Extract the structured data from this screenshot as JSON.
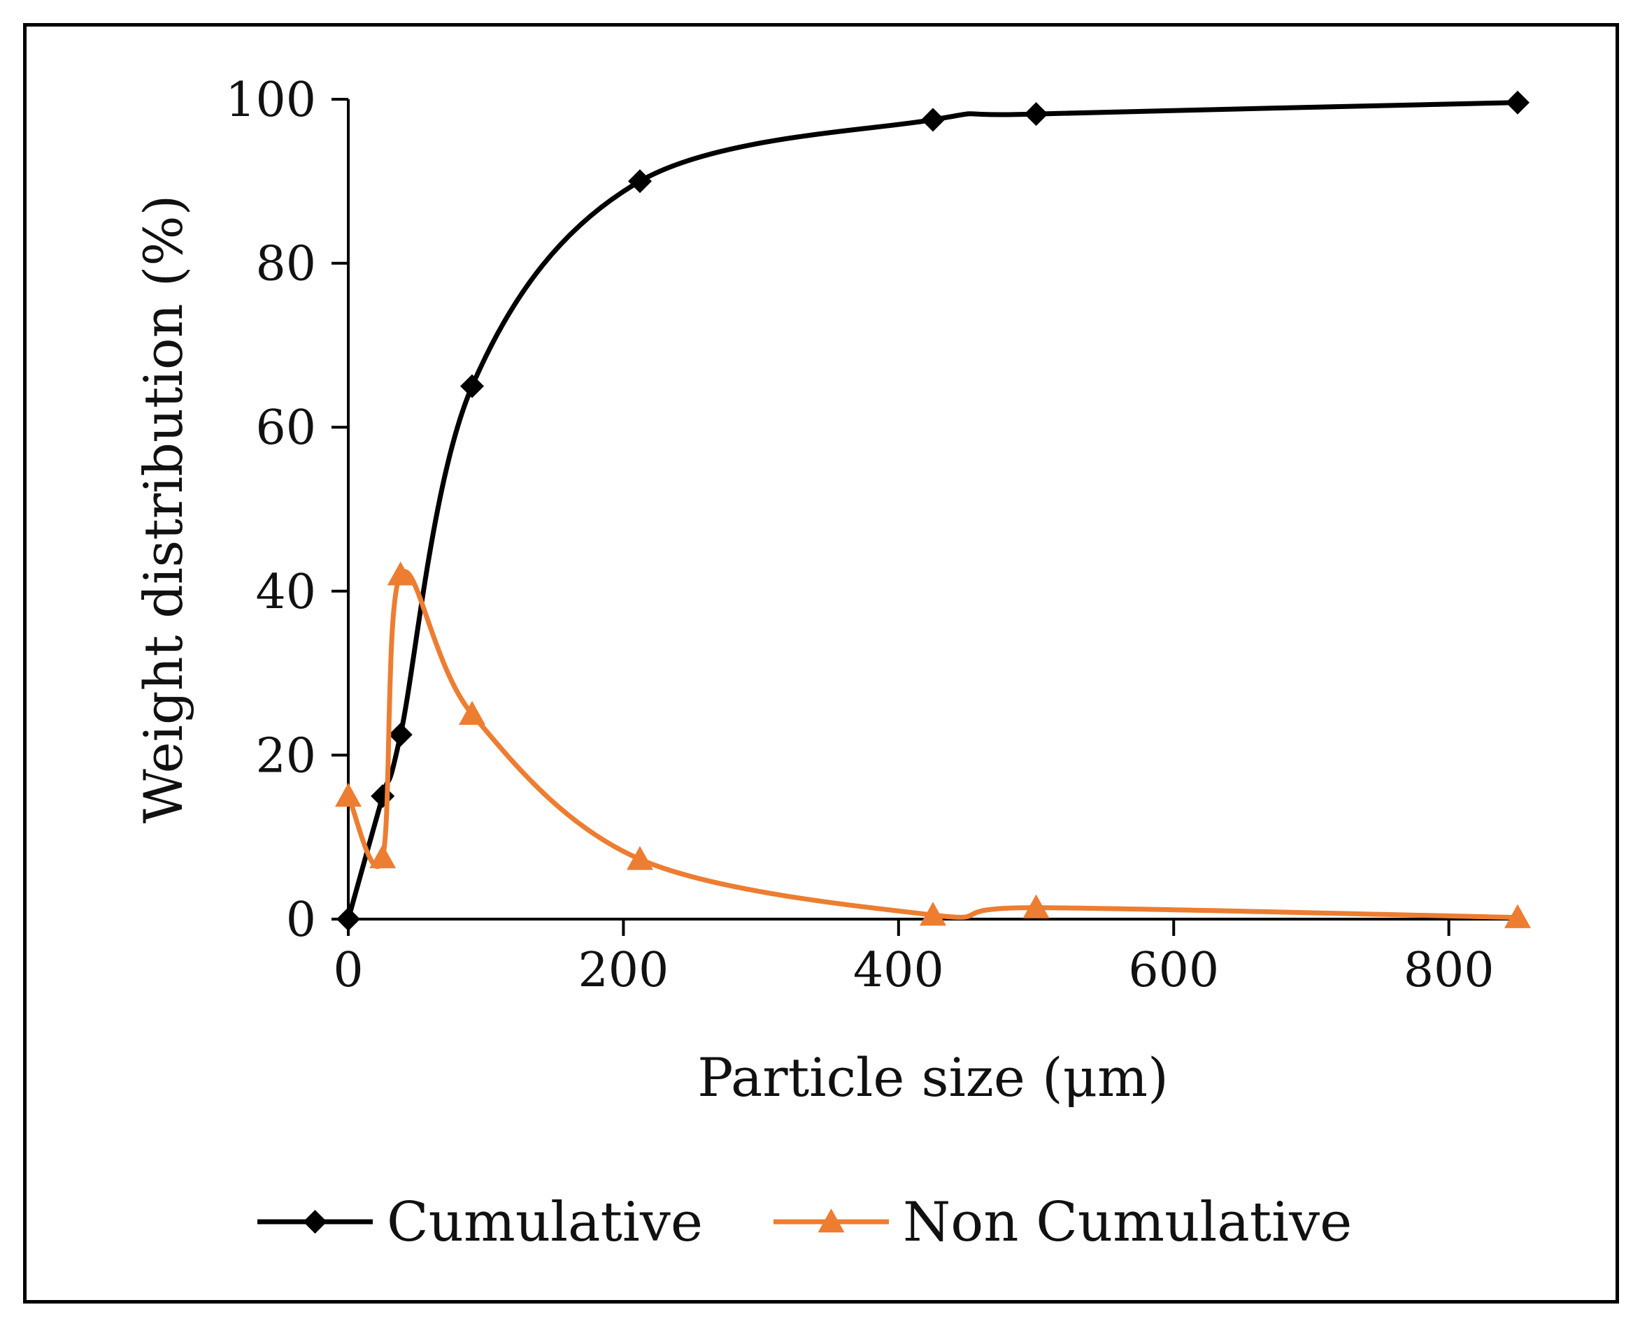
{
  "chart_data": {
    "type": "line",
    "title": "",
    "xlabel": "Particle size (μm)",
    "ylabel": "Weight distribution (%)",
    "xlim": [
      0,
      850
    ],
    "ylim": [
      0,
      100
    ],
    "x_ticks": [
      0,
      200,
      400,
      600,
      800
    ],
    "y_ticks": [
      0,
      20,
      40,
      60,
      80,
      100
    ],
    "legend_position": "bottom",
    "grid": false,
    "series": [
      {
        "name": "Cumulative",
        "color": "#000000",
        "marker": "diamond",
        "x": [
          0,
          25,
          38,
          90,
          212,
          425,
          500,
          850
        ],
        "y": [
          0,
          15,
          22.5,
          65,
          90,
          97.5,
          98.2,
          99.6
        ]
      },
      {
        "name": "Non Cumulative",
        "color": "#ED7D31",
        "marker": "triangle",
        "x": [
          0,
          25,
          38,
          90,
          212,
          425,
          500,
          850
        ],
        "y": [
          15,
          7.5,
          42,
          25,
          7.3,
          0.5,
          1.4,
          0.2
        ]
      }
    ]
  }
}
